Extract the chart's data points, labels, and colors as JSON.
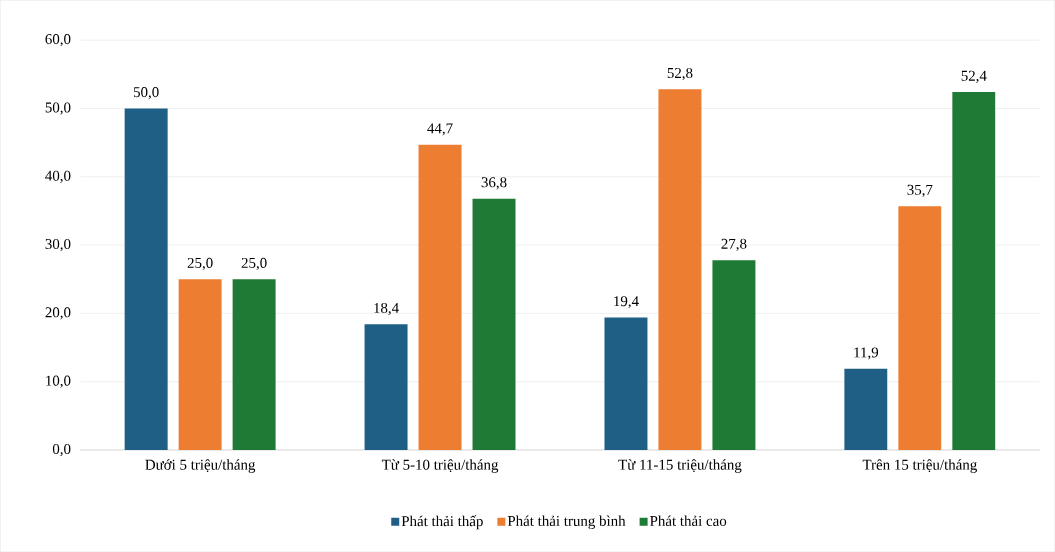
{
  "chart_data": {
    "type": "bar",
    "categories": [
      "Dưới 5 triệu/tháng",
      "Từ 5-10 triệu/tháng",
      "Từ 11-15  triệu/tháng",
      "Trên 15 triệu/tháng"
    ],
    "series": [
      {
        "name": "Phát thải thấp",
        "color": "#1f5f85",
        "values": [
          50.0,
          18.4,
          19.4,
          11.9
        ],
        "value_labels": [
          "50,0",
          "18,4",
          "19,4",
          "11,9"
        ]
      },
      {
        "name": "Phát thải trung bình",
        "color": "#ed7d31",
        "values": [
          25.0,
          44.7,
          52.8,
          35.7
        ],
        "value_labels": [
          "25,0",
          "44,7",
          "52,8",
          "35,7"
        ]
      },
      {
        "name": "Phát thải cao",
        "color": "#1f7a35",
        "values": [
          25.0,
          36.8,
          27.8,
          52.4
        ],
        "value_labels": [
          "25,0",
          "36,8",
          "27,8",
          "52,4"
        ]
      }
    ],
    "ylim": [
      0,
      60
    ],
    "yticks": [
      {
        "value": 0,
        "label": "0,0"
      },
      {
        "value": 10,
        "label": "10,0"
      },
      {
        "value": 20,
        "label": "20,0"
      },
      {
        "value": 30,
        "label": "30,0"
      },
      {
        "value": 40,
        "label": "40,0"
      },
      {
        "value": 50,
        "label": "50,0"
      },
      {
        "value": 60,
        "label": "60,0"
      }
    ],
    "grid": "y",
    "legend": "bottom"
  }
}
